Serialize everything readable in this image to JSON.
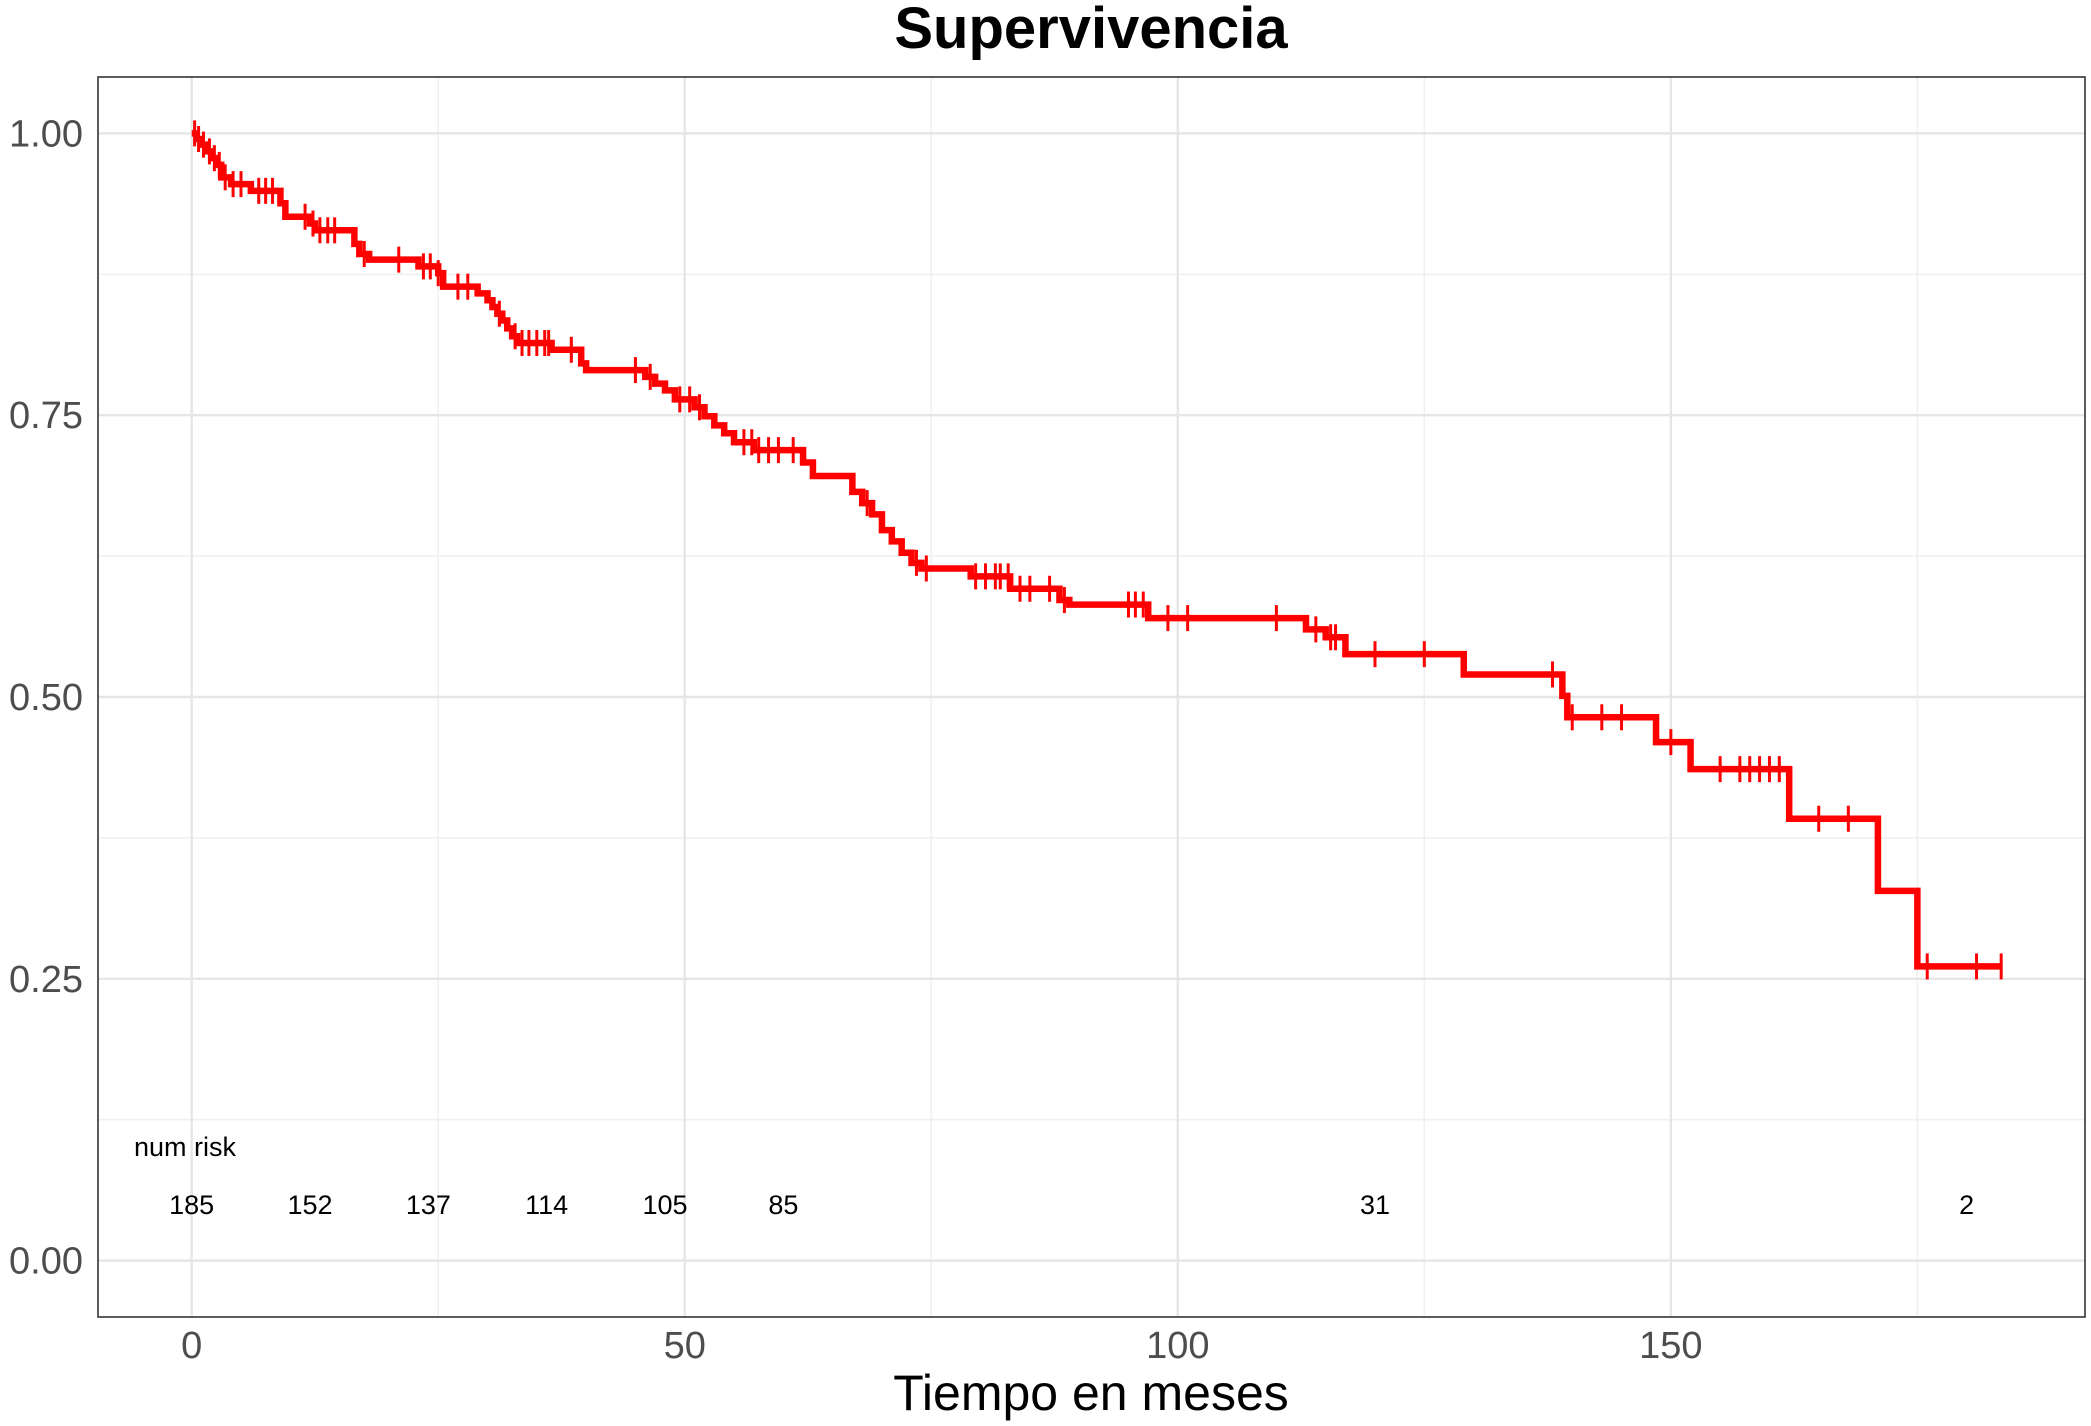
{
  "chart_data": {
    "type": "line",
    "title": "Supervivencia",
    "xlabel": "Tiempo en meses",
    "ylabel": "",
    "xlim": [
      -9.5,
      192
    ],
    "ylim": [
      -0.05,
      1.05
    ],
    "x_ticks": [
      0,
      50,
      100,
      150
    ],
    "y_ticks": [
      0.0,
      0.25,
      0.5,
      0.75,
      1.0
    ],
    "y_tick_labels": [
      "0.00",
      "0.25",
      "0.50",
      "0.75",
      "1.00"
    ],
    "grid": true,
    "legend": "none",
    "colors": {
      "series": "#ff0000"
    },
    "series": [
      {
        "step_points": [
          [
            0,
            1.0
          ],
          [
            0.5,
            0.995
          ],
          [
            1,
            0.99
          ],
          [
            1.5,
            0.984
          ],
          [
            2,
            0.978
          ],
          [
            2.5,
            0.972
          ],
          [
            3,
            0.961
          ],
          [
            4,
            0.955
          ],
          [
            6,
            0.949
          ],
          [
            9,
            0.938
          ],
          [
            9.5,
            0.926
          ],
          [
            12,
            0.92
          ],
          [
            12.5,
            0.914
          ],
          [
            16.5,
            0.902
          ],
          [
            17,
            0.893
          ],
          [
            18,
            0.888
          ],
          [
            23,
            0.882
          ],
          [
            25,
            0.876
          ],
          [
            25.5,
            0.864
          ],
          [
            29,
            0.858
          ],
          [
            30,
            0.852
          ],
          [
            30.5,
            0.846
          ],
          [
            31,
            0.84
          ],
          [
            31.5,
            0.834
          ],
          [
            32,
            0.827
          ],
          [
            32.5,
            0.82
          ],
          [
            33,
            0.814
          ],
          [
            36.5,
            0.808
          ],
          [
            39.5,
            0.796
          ],
          [
            40,
            0.79
          ],
          [
            46,
            0.784
          ],
          [
            47,
            0.778
          ],
          [
            48,
            0.772
          ],
          [
            49,
            0.764
          ],
          [
            51,
            0.757
          ],
          [
            52,
            0.749
          ],
          [
            53,
            0.741
          ],
          [
            54,
            0.734
          ],
          [
            55,
            0.726
          ],
          [
            57,
            0.719
          ],
          [
            62,
            0.708
          ],
          [
            63,
            0.696
          ],
          [
            67,
            0.682
          ],
          [
            68,
            0.672
          ],
          [
            69,
            0.662
          ],
          [
            70,
            0.648
          ],
          [
            71,
            0.638
          ],
          [
            72,
            0.628
          ],
          [
            73,
            0.619
          ],
          [
            74,
            0.614
          ],
          [
            79,
            0.607
          ],
          [
            83,
            0.596
          ],
          [
            88,
            0.586
          ],
          [
            89,
            0.582
          ],
          [
            97,
            0.57
          ],
          [
            113,
            0.56
          ],
          [
            115,
            0.553
          ],
          [
            117,
            0.538
          ],
          [
            129,
            0.52
          ],
          [
            139,
            0.501
          ],
          [
            139.5,
            0.482
          ],
          [
            148.5,
            0.46
          ],
          [
            152,
            0.436
          ],
          [
            162,
            0.392
          ],
          [
            171,
            0.328
          ],
          [
            175,
            0.261
          ],
          [
            183.5,
            0.261
          ]
        ],
        "censor_x": [
          0.3,
          0.7,
          1.2,
          1.8,
          2.3,
          2.8,
          3.4,
          4.2,
          5,
          6.8,
          7.5,
          8.2,
          11.5,
          12.3,
          13,
          13.8,
          14.5,
          17.5,
          21,
          23.5,
          24.2,
          25,
          27,
          28,
          31.2,
          32.8,
          33.5,
          34.2,
          35,
          35.8,
          36.2,
          38.5,
          45,
          46.5,
          49.5,
          50.5,
          51.5,
          56,
          56.8,
          57.5,
          58.5,
          59.5,
          61,
          68.5,
          73.5,
          74.5,
          79.5,
          80.5,
          81.5,
          82,
          82.8,
          84,
          85,
          87,
          88.5,
          95,
          95.7,
          96.5,
          99,
          101,
          110,
          114,
          115.5,
          116,
          120,
          125,
          138,
          140,
          143,
          145,
          150,
          155,
          157,
          158,
          159,
          160,
          161,
          165,
          168,
          176,
          181,
          183.5
        ]
      }
    ],
    "risk_table": {
      "header": "num risk",
      "times": [
        0,
        12,
        24,
        36,
        48,
        60,
        120,
        180
      ],
      "labels": [
        "185",
        "152",
        "137",
        "114",
        "105",
        "85",
        "31",
        "2"
      ]
    }
  }
}
